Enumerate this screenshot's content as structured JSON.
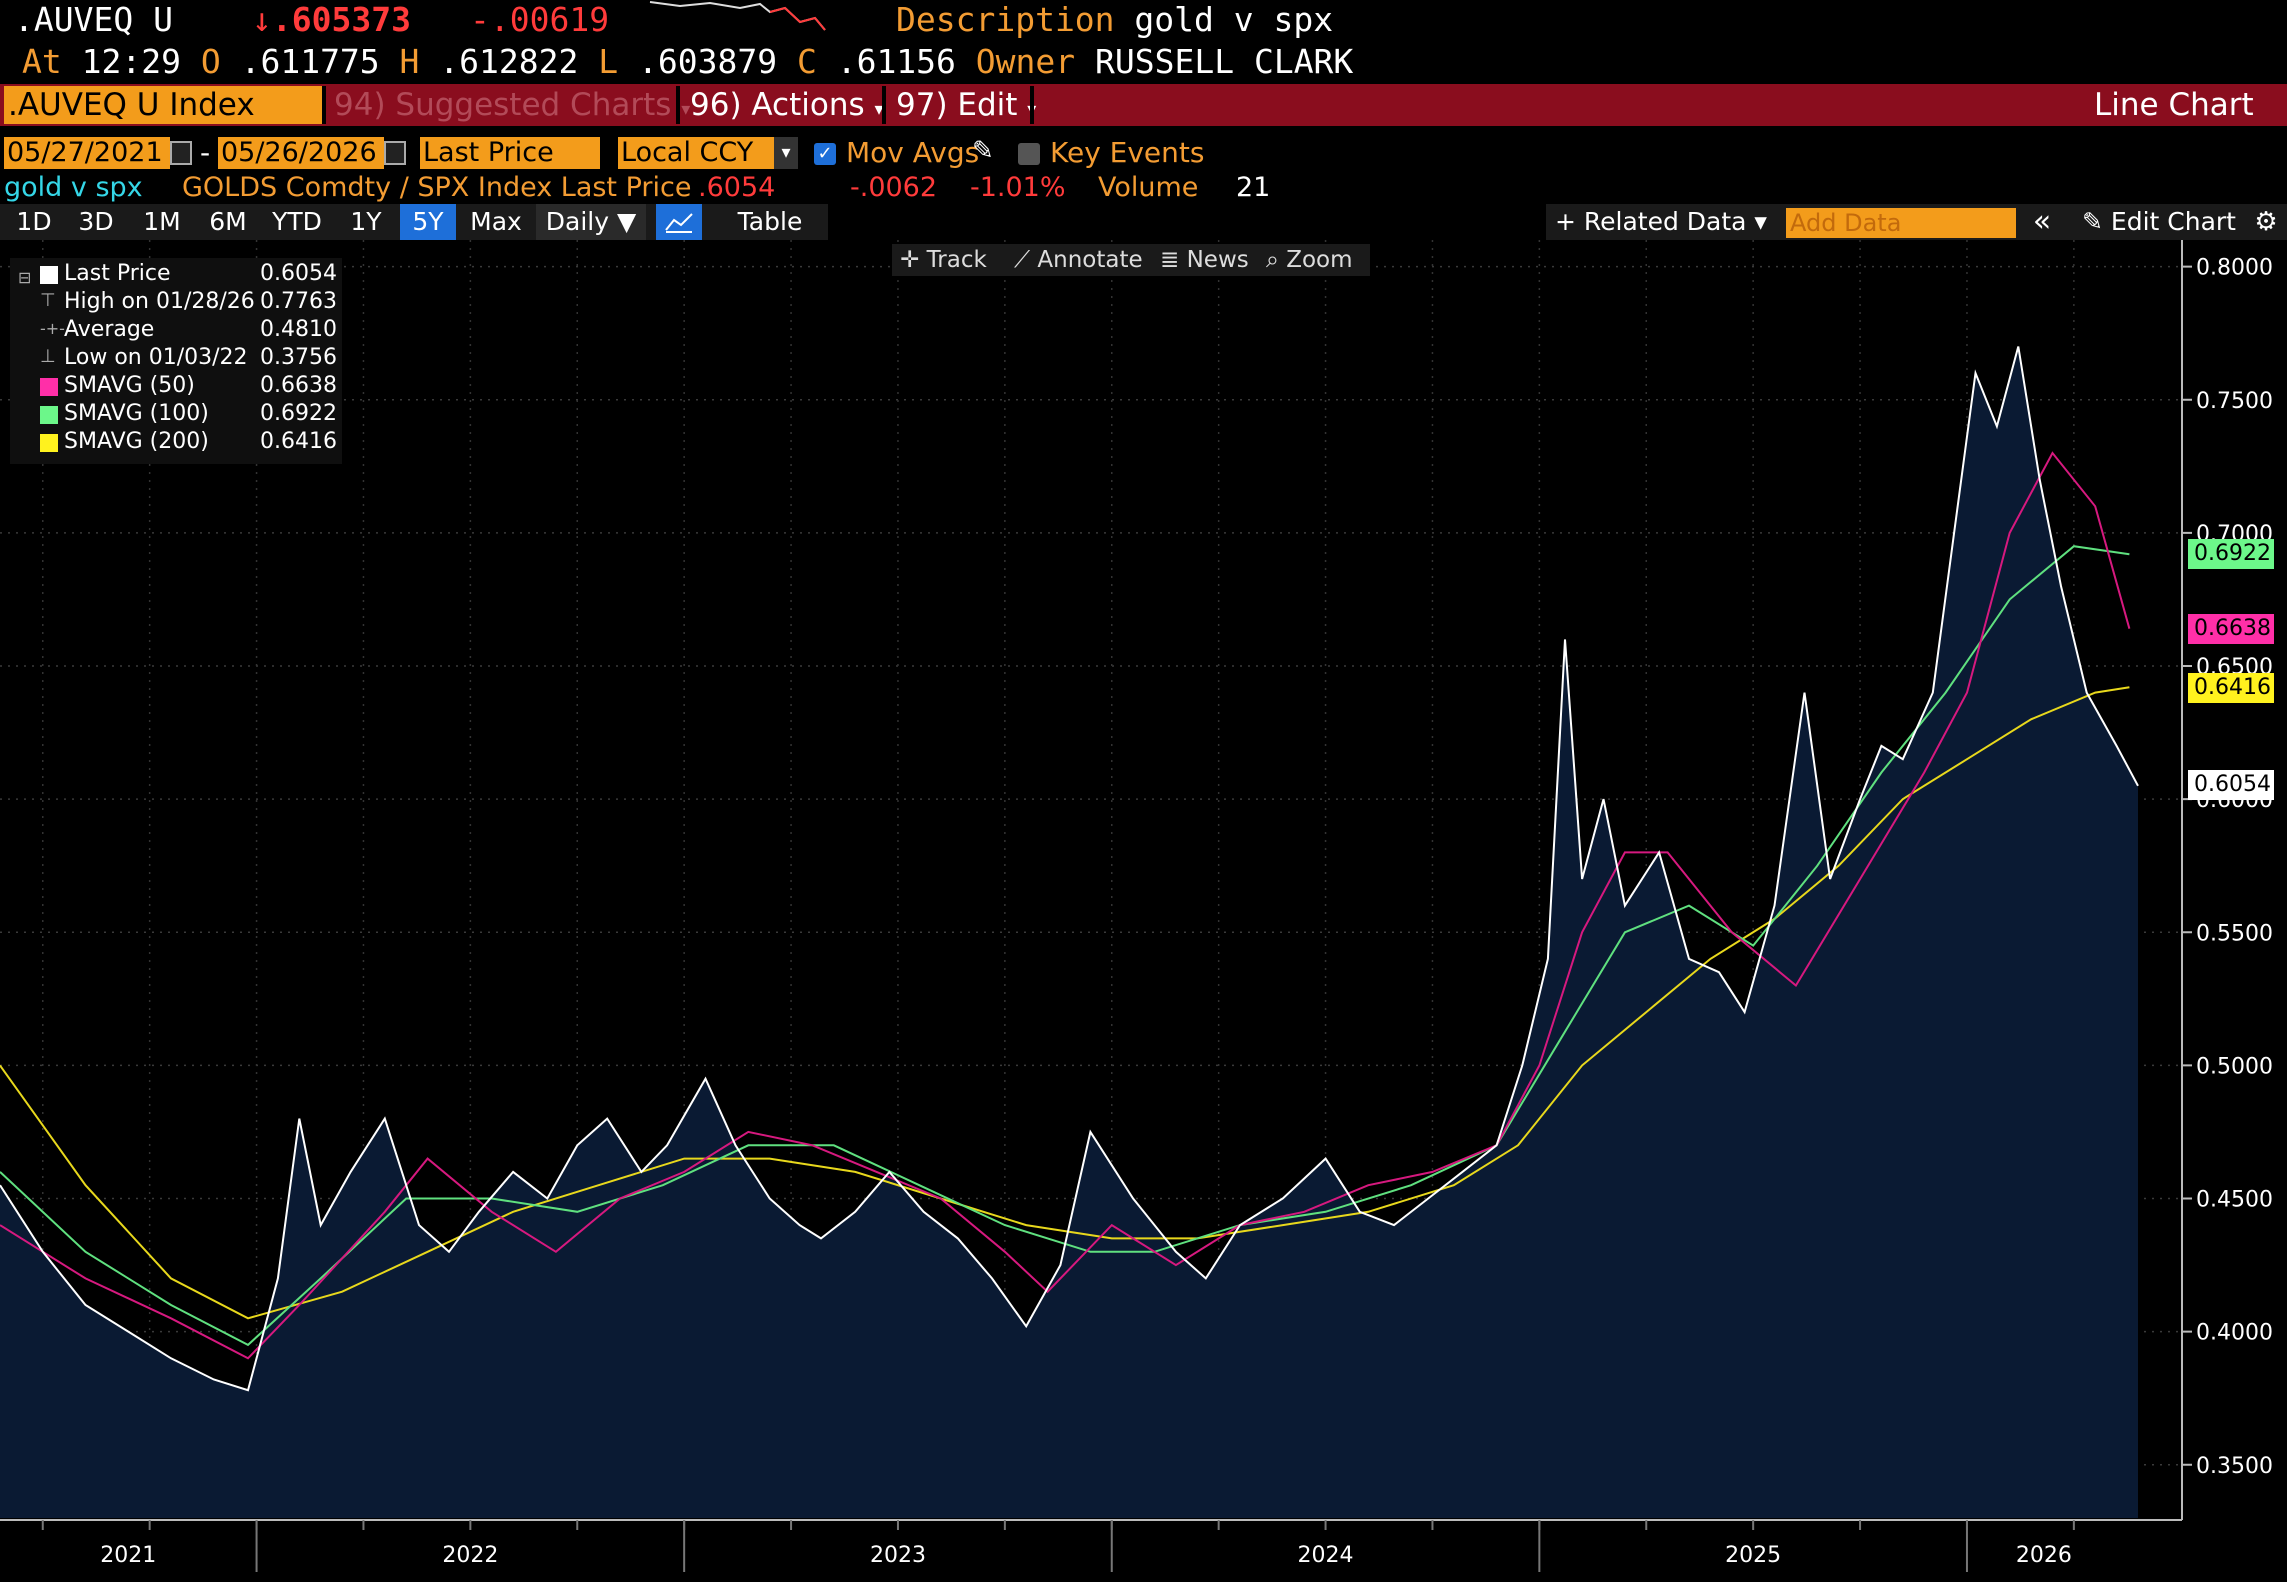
{
  "header": {
    "ticker": ".AUVEQ U",
    "last_arrow": "↓",
    "last": ".605373",
    "change": "-.00619",
    "desc_label": "Description",
    "desc_value": "gold v spx",
    "at_label": "At",
    "time": "12:29",
    "o_label": "O",
    "open": ".611775",
    "h_label": "H",
    "high": ".612822",
    "l_label": "L",
    "low": ".603879",
    "c_label": "C",
    "close": ".61156",
    "owner_label": "Owner",
    "owner": "RUSSELL CLARK"
  },
  "menubar": {
    "security": ".AUVEQ U Index",
    "suggested": "94) Suggested Charts",
    "actions": "96) Actions",
    "edit": "97) Edit",
    "chart_type": "Line Chart"
  },
  "controls": {
    "start_date": "05/27/2021",
    "dash": "-",
    "end_date": "05/26/2026",
    "field": "Last Price",
    "currency": "Local CCY",
    "mov_avgs": "Mov Avgs",
    "key_events": "Key Events"
  },
  "infoline": {
    "name": "gold v spx",
    "expr": "GOLDS Comdty / SPX Index Last Price",
    "last": ".6054",
    "change": "-.0062",
    "pct": "-1.01%",
    "volume_label": "Volume",
    "volume": "21"
  },
  "toolbar": {
    "periods": [
      "1D",
      "3D",
      "1M",
      "6M",
      "YTD",
      "1Y",
      "5Y",
      "Max"
    ],
    "selected_period": "5Y",
    "frequency": "Daily ▼",
    "table": "Table",
    "related": "+ Related Data ▾",
    "add_data_placeholder": "Add Data",
    "collapse": "«",
    "edit_chart": "Edit Chart",
    "track": "Track",
    "annotate": "Annotate",
    "news": "News",
    "zoom": "Zoom"
  },
  "legend": {
    "items": [
      {
        "label": "Last Price",
        "value": "0.6054",
        "color": "#ffffff"
      },
      {
        "label": "High on 01/28/26",
        "value": "0.7763",
        "color": ""
      },
      {
        "label": "Average",
        "value": "0.4810",
        "color": ""
      },
      {
        "label": "Low on 01/03/22",
        "value": "0.3756",
        "color": ""
      },
      {
        "label": "SMAVG (50)",
        "value": "0.6638",
        "color": "#ff2fa8"
      },
      {
        "label": "SMAVG (100)",
        "value": "0.6922",
        "color": "#6cf78a"
      },
      {
        "label": "SMAVG (200)",
        "value": "0.6416",
        "color": "#fff21e"
      }
    ]
  },
  "colors": {
    "bg": "#000000",
    "orange": "#f39c33",
    "menubar": "#8a0d1e",
    "area_fill": "#0a1a33",
    "price": "#ffffff",
    "sma50": "#d6197f",
    "sma100": "#5fe07f",
    "sma200": "#e8d81c"
  },
  "chart_data": {
    "type": "line",
    "ylim": [
      0.33,
      0.81
    ],
    "yticks": [
      "0.8000",
      "0.7500",
      "0.7000",
      "0.6500",
      "0.6000",
      "0.5500",
      "0.5000",
      "0.4500",
      "0.4000",
      "0.3500"
    ],
    "xlabels": [
      "2021",
      "2022",
      "2023",
      "2024",
      "2025",
      "2026"
    ],
    "tags": [
      {
        "value": "0.6922",
        "color": "#6cf78a"
      },
      {
        "value": "0.6638",
        "color": "#ff2fa8"
      },
      {
        "value": "0.6416",
        "color": "#fff21e"
      },
      {
        "value": "0.6054",
        "color": "#ffffff"
      }
    ],
    "series": [
      {
        "name": "Last Price",
        "x": [
          2021.4,
          2021.5,
          2021.6,
          2021.7,
          2021.8,
          2021.9,
          2021.98,
          2022.05,
          2022.1,
          2022.15,
          2022.22,
          2022.3,
          2022.38,
          2022.45,
          2022.52,
          2022.6,
          2022.68,
          2022.75,
          2022.82,
          2022.9,
          2022.96,
          2023.05,
          2023.12,
          2023.2,
          2023.27,
          2023.32,
          2023.4,
          2023.48,
          2023.56,
          2023.64,
          2023.72,
          2023.8,
          2023.88,
          2023.95,
          2024.05,
          2024.15,
          2024.22,
          2024.3,
          2024.4,
          2024.5,
          2024.58,
          2024.66,
          2024.74,
          2024.82,
          2024.9,
          2024.96,
          2025.02,
          2025.06,
          2025.1,
          2025.15,
          2025.2,
          2025.28,
          2025.35,
          2025.42,
          2025.48,
          2025.55,
          2025.62,
          2025.68,
          2025.75,
          2025.8,
          2025.85,
          2025.92,
          2025.97,
          2026.02,
          2026.07,
          2026.12,
          2026.17,
          2026.22,
          2026.28,
          2026.35,
          2026.4
        ],
        "values": [
          0.455,
          0.43,
          0.41,
          0.4,
          0.39,
          0.382,
          0.378,
          0.42,
          0.48,
          0.44,
          0.46,
          0.48,
          0.44,
          0.43,
          0.445,
          0.46,
          0.45,
          0.47,
          0.48,
          0.46,
          0.47,
          0.495,
          0.47,
          0.45,
          0.44,
          0.435,
          0.445,
          0.46,
          0.445,
          0.435,
          0.42,
          0.402,
          0.425,
          0.475,
          0.45,
          0.43,
          0.42,
          0.44,
          0.45,
          0.465,
          0.445,
          0.44,
          0.45,
          0.46,
          0.47,
          0.5,
          0.54,
          0.66,
          0.57,
          0.6,
          0.56,
          0.58,
          0.54,
          0.535,
          0.52,
          0.56,
          0.64,
          0.57,
          0.6,
          0.62,
          0.615,
          0.64,
          0.7,
          0.76,
          0.74,
          0.77,
          0.72,
          0.68,
          0.64,
          0.62,
          0.605
        ]
      },
      {
        "name": "SMAVG (50)",
        "x": [
          2021.4,
          2021.6,
          2021.8,
          2021.98,
          2022.1,
          2022.3,
          2022.4,
          2022.55,
          2022.7,
          2022.85,
          2023.0,
          2023.15,
          2023.3,
          2023.45,
          2023.6,
          2023.75,
          2023.85,
          2024.0,
          2024.15,
          2024.3,
          2024.45,
          2024.6,
          2024.75,
          2024.9,
          2025.0,
          2025.1,
          2025.2,
          2025.3,
          2025.45,
          2025.6,
          2025.75,
          2025.9,
          2026.0,
          2026.1,
          2026.2,
          2026.3,
          2026.38
        ],
        "values": [
          0.44,
          0.42,
          0.405,
          0.39,
          0.41,
          0.445,
          0.465,
          0.445,
          0.43,
          0.45,
          0.46,
          0.475,
          0.47,
          0.46,
          0.45,
          0.43,
          0.415,
          0.44,
          0.425,
          0.44,
          0.445,
          0.455,
          0.46,
          0.47,
          0.5,
          0.55,
          0.58,
          0.58,
          0.55,
          0.53,
          0.57,
          0.61,
          0.64,
          0.7,
          0.73,
          0.71,
          0.664
        ]
      },
      {
        "name": "SMAVG (100)",
        "x": [
          2021.4,
          2021.6,
          2021.8,
          2021.98,
          2022.15,
          2022.35,
          2022.55,
          2022.75,
          2022.95,
          2023.15,
          2023.35,
          2023.55,
          2023.75,
          2023.95,
          2024.1,
          2024.3,
          2024.5,
          2024.7,
          2024.9,
          2025.05,
          2025.2,
          2025.35,
          2025.5,
          2025.65,
          2025.8,
          2025.95,
          2026.1,
          2026.25,
          2026.38
        ],
        "values": [
          0.46,
          0.43,
          0.41,
          0.395,
          0.42,
          0.45,
          0.45,
          0.445,
          0.455,
          0.47,
          0.47,
          0.455,
          0.44,
          0.43,
          0.43,
          0.44,
          0.445,
          0.455,
          0.47,
          0.51,
          0.55,
          0.56,
          0.545,
          0.575,
          0.61,
          0.64,
          0.675,
          0.695,
          0.692
        ]
      },
      {
        "name": "SMAVG (200)",
        "x": [
          2021.4,
          2021.6,
          2021.8,
          2021.98,
          2022.2,
          2022.4,
          2022.6,
          2022.8,
          2023.0,
          2023.2,
          2023.4,
          2023.6,
          2023.8,
          2024.0,
          2024.2,
          2024.4,
          2024.6,
          2024.8,
          2024.95,
          2025.1,
          2025.25,
          2025.4,
          2025.55,
          2025.7,
          2025.85,
          2026.0,
          2026.15,
          2026.3,
          2026.38
        ],
        "values": [
          0.5,
          0.455,
          0.42,
          0.405,
          0.415,
          0.43,
          0.445,
          0.455,
          0.465,
          0.465,
          0.46,
          0.45,
          0.44,
          0.435,
          0.435,
          0.44,
          0.445,
          0.455,
          0.47,
          0.5,
          0.52,
          0.54,
          0.555,
          0.575,
          0.6,
          0.615,
          0.63,
          0.64,
          0.642
        ]
      }
    ]
  }
}
